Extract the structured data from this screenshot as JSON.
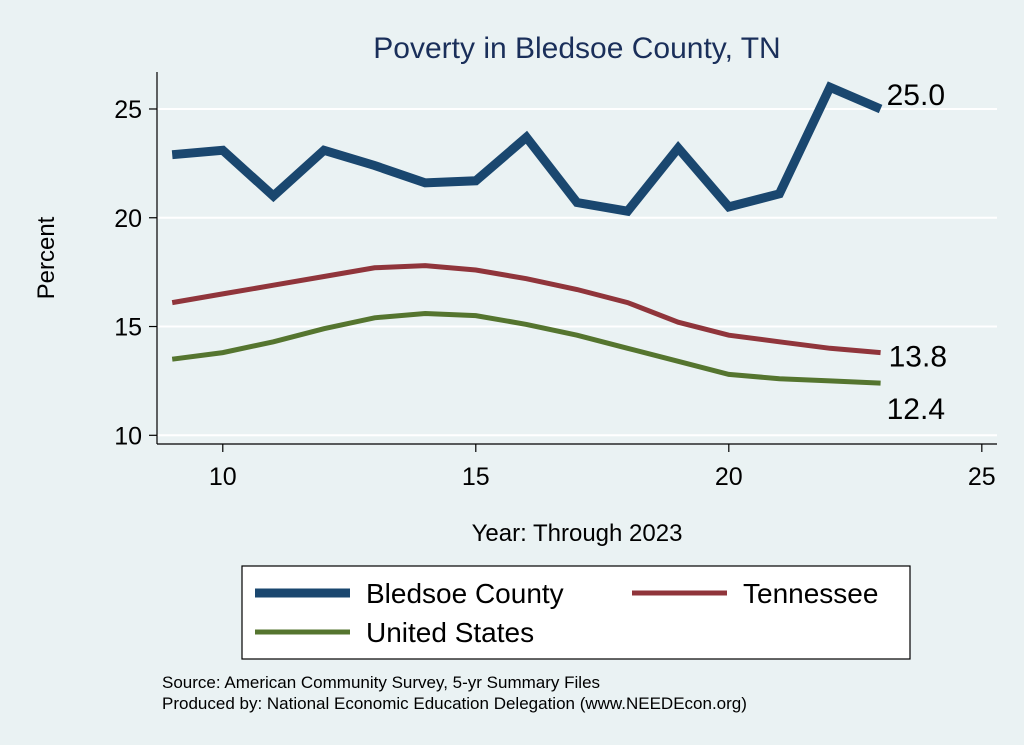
{
  "chart_data": {
    "type": "line",
    "title": "Poverty in Bledsoe County, TN",
    "xlabel": "Year: Through 2023",
    "ylabel": "Percent",
    "xlim": [
      8.7,
      25.3
    ],
    "ylim": [
      9.6,
      26.7
    ],
    "xticks": [
      10,
      15,
      20,
      25
    ],
    "yticks": [
      10,
      15,
      20,
      25
    ],
    "grid": true,
    "series": [
      {
        "name": "Bledsoe County",
        "color": "#1a476f",
        "width": 9,
        "x": [
          9,
          10,
          11,
          12,
          13,
          14,
          15,
          16,
          17,
          18,
          19,
          20,
          21,
          22,
          23
        ],
        "values": [
          22.9,
          23.1,
          21.0,
          23.1,
          22.4,
          21.6,
          21.7,
          23.7,
          20.7,
          20.3,
          23.2,
          20.5,
          21.1,
          26.0,
          25.0
        ],
        "end_label": "25.0"
      },
      {
        "name": "Tennessee",
        "color": "#90353b",
        "width": 5,
        "x": [
          9,
          10,
          11,
          12,
          13,
          14,
          15,
          16,
          17,
          18,
          19,
          20,
          21,
          22,
          23
        ],
        "values": [
          16.1,
          16.5,
          16.9,
          17.3,
          17.7,
          17.8,
          17.6,
          17.2,
          16.7,
          16.1,
          15.2,
          14.6,
          14.3,
          14.0,
          13.8
        ],
        "end_label": "13.8"
      },
      {
        "name": "United States",
        "color": "#55752f",
        "width": 5,
        "x": [
          9,
          10,
          11,
          12,
          13,
          14,
          15,
          16,
          17,
          18,
          19,
          20,
          21,
          22,
          23
        ],
        "values": [
          13.5,
          13.8,
          14.3,
          14.9,
          15.4,
          15.6,
          15.5,
          15.1,
          14.6,
          14.0,
          13.4,
          12.8,
          12.6,
          12.5,
          12.4
        ],
        "end_label": "12.4"
      }
    ],
    "legend": {
      "position": "bottom",
      "order": [
        "Bledsoe County",
        "Tennessee",
        "United States"
      ]
    }
  },
  "notes": {
    "source": "Source: American Community Survey, 5-yr Summary Files",
    "produced": "Produced by: National Economic Education Delegation (www.NEEDEcon.org)"
  }
}
